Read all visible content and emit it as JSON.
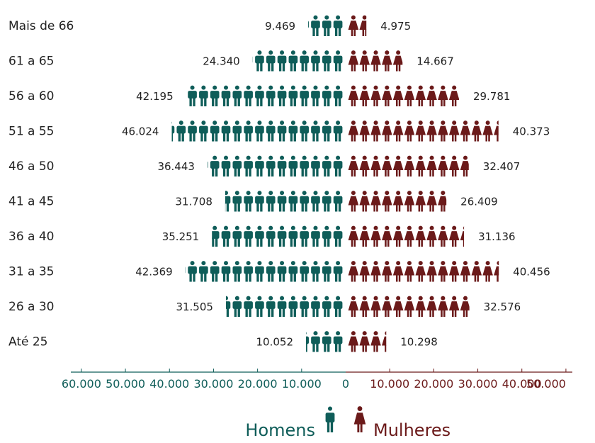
{
  "chart_data": {
    "type": "bar",
    "subtype": "population-pyramid-pictogram",
    "categories": [
      "Mais de 66",
      "61 a 65",
      "56 a 60",
      "51 a 55",
      "46 a 50",
      "41 a 45",
      "36 a 40",
      "31 a 35",
      "26 a 30",
      "Até 25"
    ],
    "series": [
      {
        "name": "Homens",
        "color": "#0f5d59",
        "values": [
          9469,
          24340,
          42195,
          46024,
          36443,
          31708,
          35251,
          42369,
          31505,
          10052
        ],
        "labels": [
          "9.469",
          "24.340",
          "42.195",
          "46.024",
          "36.443",
          "31.708",
          "35.251",
          "42.369",
          "31.505",
          "10.052"
        ]
      },
      {
        "name": "Mulheres",
        "color": "#6b1a1a",
        "values": [
          4975,
          14667,
          29781,
          40373,
          32407,
          26409,
          31136,
          40456,
          32576,
          10298
        ],
        "labels": [
          "4.975",
          "14.667",
          "29.781",
          "40.373",
          "32.407",
          "26.409",
          "31.136",
          "40.456",
          "32.576",
          "10.298"
        ]
      }
    ],
    "axis": {
      "left_ticks": [
        "60.000",
        "50.000",
        "40.000",
        "30.000",
        "20.000",
        "10.000"
      ],
      "center_tick": "0",
      "right_ticks": [
        "10.000",
        "20.000",
        "30.000",
        "40.000",
        "50.000"
      ],
      "max": 50000,
      "left_max": 60000
    },
    "unit_per_icon": 3000,
    "grid": false,
    "legend_position": "bottom"
  }
}
